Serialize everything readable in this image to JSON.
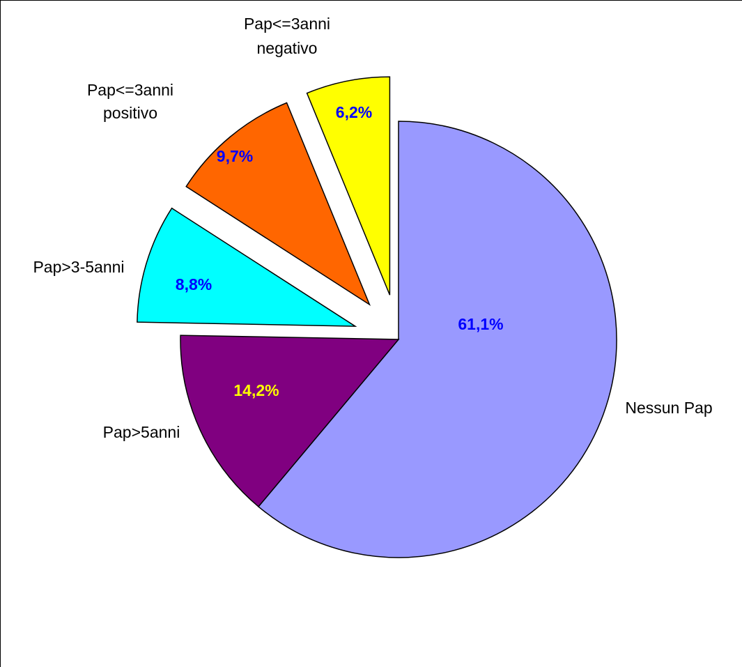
{
  "chart_data": {
    "type": "pie",
    "title": "",
    "slices": [
      {
        "name": "Nessun Pap",
        "value": 61.1,
        "value_label": "61,1%",
        "color": "#9999ff",
        "label_color": "#0000ff",
        "exploded": false
      },
      {
        "name": "Pap>5anni",
        "value": 14.2,
        "value_label": "14,2%",
        "color": "#800080",
        "label_color": "#ffff00",
        "exploded": false
      },
      {
        "name": "Pap>3-5anni",
        "value": 8.8,
        "value_label": "8,8%",
        "color": "#00ffff",
        "label_color": "#0000ff",
        "exploded": true
      },
      {
        "name": "Pap<=3anni positivo",
        "value": 9.7,
        "value_label": "9,7%",
        "color": "#ff6600",
        "label_color": "#0000ff",
        "exploded": true
      },
      {
        "name": "Pap<=3anni negativo",
        "value": 6.2,
        "value_label": "6,2%",
        "color": "#ffff00",
        "label_color": "#0000ff",
        "exploded": true
      }
    ],
    "start_angle_deg": 0,
    "direction": "clockwise",
    "legend": "none"
  }
}
